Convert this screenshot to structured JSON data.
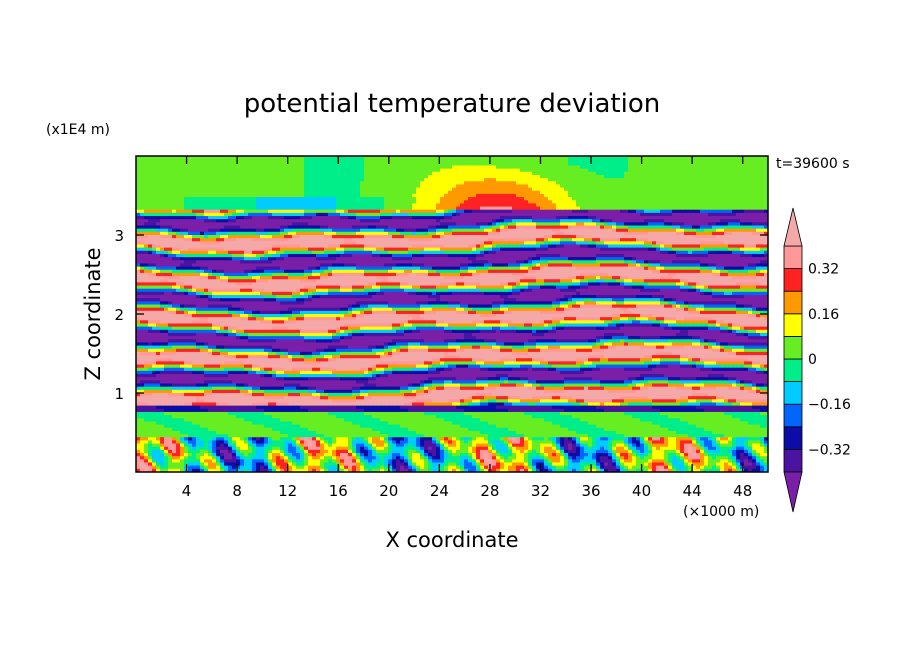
{
  "chart_data": {
    "type": "heatmap",
    "title": "potential temperature deviation",
    "xlabel": "X coordinate",
    "ylabel": "Z coordinate",
    "x_unit": "(×1000 m)",
    "y_unit": "(x1E4 m)",
    "time_label": "t=39600 s",
    "xlim": [
      0,
      50
    ],
    "ylim": [
      0,
      4
    ],
    "x_ticks": [
      4,
      8,
      12,
      16,
      20,
      24,
      28,
      32,
      36,
      40,
      44,
      48
    ],
    "x_tick_labels": [
      "4",
      "8",
      "12",
      "16",
      "20",
      "24",
      "28",
      "32",
      "36",
      "40",
      "44",
      "48"
    ],
    "y_ticks": [
      1,
      2,
      3
    ],
    "y_tick_labels": [
      "1",
      "2",
      "3"
    ],
    "colorbar": {
      "levels": [
        -0.4,
        -0.32,
        -0.24,
        -0.16,
        -0.08,
        0,
        0.08,
        0.16,
        0.24,
        0.32,
        0.4
      ],
      "labels": [
        {
          "value": 0.32,
          "text": "0.32"
        },
        {
          "value": 0.16,
          "text": "0.16"
        },
        {
          "value": 0,
          "text": "0"
        },
        {
          "value": -0.16,
          "text": "−0.16"
        },
        {
          "value": -0.32,
          "text": "−0.32"
        }
      ],
      "colors": [
        "#7a1fa8",
        "#4a13a0",
        "#0c0ca6",
        "#0066ff",
        "#00ccff",
        "#00ee8a",
        "#66ee22",
        "#ffff00",
        "#ff9900",
        "#ff2222",
        "#ff9999",
        "#f4a8a8"
      ],
      "extend": "both"
    },
    "field_description": "horizontal layered bands of alternating positive (pink/red) and negative (purple) deviation from z=0.8 to 3.3; near-zero (green/cyan) at top with a warm bulge near x=24-36; turbulent mixed layer below z=0.45"
  }
}
